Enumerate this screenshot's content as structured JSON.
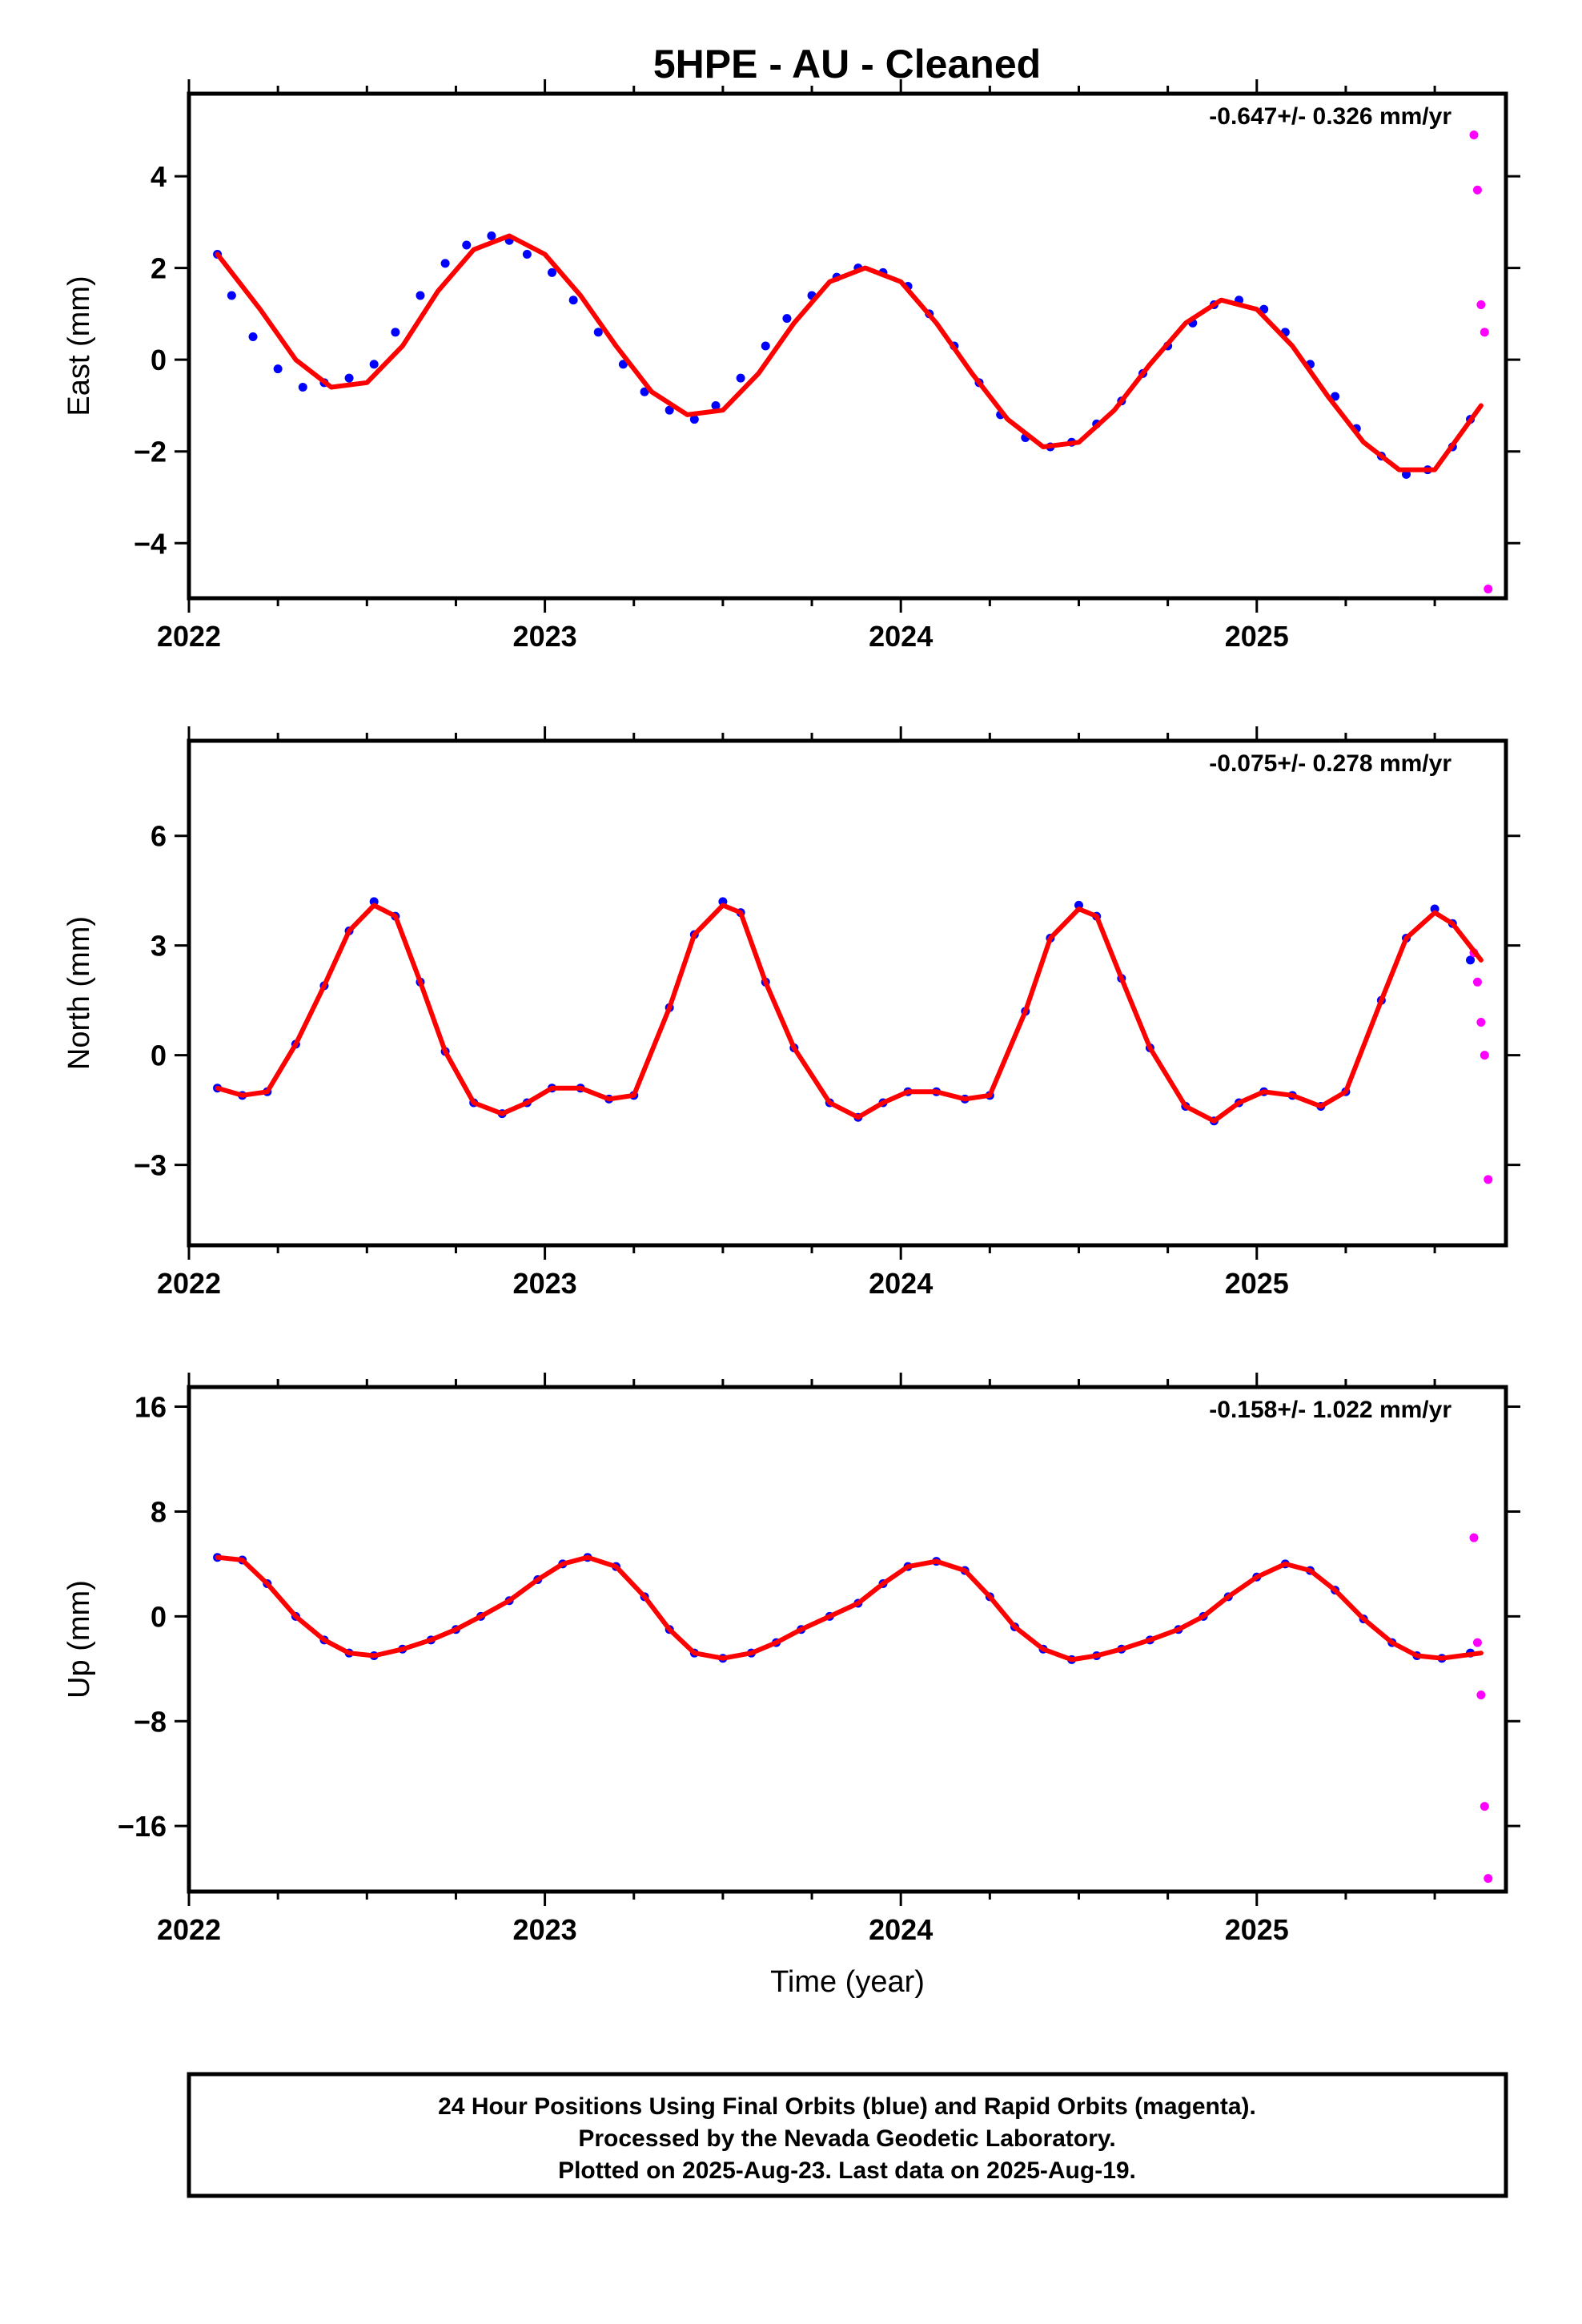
{
  "title": "5HPE  - AU - Cleaned",
  "colors": {
    "final": "#0000ff",
    "rapid": "#ff00ff",
    "fit": "#ff0000",
    "frame": "#000000"
  },
  "chart_data": [
    {
      "type": "scatter",
      "ylabel": "East (mm)",
      "rate_label": "-0.647+/- 0.326 mm/yr",
      "xlim": [
        2022.0,
        2025.7
      ],
      "ylim": [
        -5.2,
        5.8
      ],
      "x_ticks": [
        2022,
        2023,
        2024,
        2025
      ],
      "x_tick_labels": [
        "2022",
        "2023",
        "2024",
        "2025"
      ],
      "y_ticks": [
        -4,
        -2,
        0,
        2,
        4
      ],
      "y_tick_labels": [
        "−4",
        "−2",
        "0",
        "2",
        "4"
      ],
      "series": [
        {
          "kind": "points",
          "color": "#0000ff",
          "x": [
            2022.08,
            2022.12,
            2022.18,
            2022.25,
            2022.32,
            2022.38,
            2022.45,
            2022.52,
            2022.58,
            2022.65,
            2022.72,
            2022.78,
            2022.85,
            2022.9,
            2022.95,
            2023.02,
            2023.08,
            2023.15,
            2023.22,
            2023.28,
            2023.35,
            2023.42,
            2023.48,
            2023.55,
            2023.62,
            2023.68,
            2023.75,
            2023.82,
            2023.88,
            2023.95,
            2024.02,
            2024.08,
            2024.15,
            2024.22,
            2024.28,
            2024.35,
            2024.42,
            2024.48,
            2024.55,
            2024.62,
            2024.68,
            2024.75,
            2024.82,
            2024.88,
            2024.95,
            2025.02,
            2025.08,
            2025.15,
            2025.22,
            2025.28,
            2025.35,
            2025.42,
            2025.48,
            2025.55,
            2025.6
          ],
          "y": [
            2.3,
            1.4,
            0.5,
            -0.2,
            -0.6,
            -0.5,
            -0.4,
            -0.1,
            0.6,
            1.4,
            2.1,
            2.5,
            2.7,
            2.6,
            2.3,
            1.9,
            1.3,
            0.6,
            -0.1,
            -0.7,
            -1.1,
            -1.3,
            -1.0,
            -0.4,
            0.3,
            0.9,
            1.4,
            1.8,
            2.0,
            1.9,
            1.6,
            1.0,
            0.3,
            -0.5,
            -1.2,
            -1.7,
            -1.9,
            -1.8,
            -1.4,
            -0.9,
            -0.3,
            0.3,
            0.8,
            1.2,
            1.3,
            1.1,
            0.6,
            -0.1,
            -0.8,
            -1.5,
            -2.1,
            -2.5,
            -2.4,
            -1.9,
            -1.3
          ]
        },
        {
          "kind": "points",
          "color": "#ff00ff",
          "x": [
            2025.61,
            2025.62,
            2025.63,
            2025.64,
            2025.65
          ],
          "y": [
            4.9,
            3.7,
            1.2,
            0.6,
            -5.0
          ]
        },
        {
          "kind": "line",
          "color": "#ff0000",
          "x": [
            2022.08,
            2022.2,
            2022.3,
            2022.4,
            2022.5,
            2022.6,
            2022.7,
            2022.8,
            2022.9,
            2023.0,
            2023.1,
            2023.2,
            2023.3,
            2023.4,
            2023.5,
            2023.6,
            2023.7,
            2023.8,
            2023.9,
            2024.0,
            2024.1,
            2024.2,
            2024.3,
            2024.4,
            2024.5,
            2024.6,
            2024.7,
            2024.8,
            2024.9,
            2025.0,
            2025.1,
            2025.2,
            2025.3,
            2025.4,
            2025.5,
            2025.63
          ],
          "y": [
            2.3,
            1.1,
            0.0,
            -0.6,
            -0.5,
            0.3,
            1.5,
            2.4,
            2.7,
            2.3,
            1.4,
            0.3,
            -0.7,
            -1.2,
            -1.1,
            -0.3,
            0.8,
            1.7,
            2.0,
            1.7,
            0.8,
            -0.3,
            -1.3,
            -1.9,
            -1.8,
            -1.1,
            -0.1,
            0.8,
            1.3,
            1.1,
            0.3,
            -0.8,
            -1.8,
            -2.4,
            -2.4,
            -1.0
          ]
        }
      ]
    },
    {
      "type": "scatter",
      "ylabel": "North (mm)",
      "rate_label": "-0.075+/- 0.278 mm/yr",
      "xlim": [
        2022.0,
        2025.7
      ],
      "ylim": [
        -5.2,
        8.6
      ],
      "x_ticks": [
        2022,
        2023,
        2024,
        2025
      ],
      "x_tick_labels": [
        "2022",
        "2023",
        "2024",
        "2025"
      ],
      "y_ticks": [
        -3,
        0,
        3,
        6
      ],
      "y_tick_labels": [
        "−3",
        "0",
        "3",
        "6"
      ],
      "series": [
        {
          "kind": "points",
          "color": "#0000ff",
          "x": [
            2022.08,
            2022.15,
            2022.22,
            2022.3,
            2022.38,
            2022.45,
            2022.52,
            2022.58,
            2022.65,
            2022.72,
            2022.8,
            2022.88,
            2022.95,
            2023.02,
            2023.1,
            2023.18,
            2023.25,
            2023.35,
            2023.42,
            2023.5,
            2023.55,
            2023.62,
            2023.7,
            2023.8,
            2023.88,
            2023.95,
            2024.02,
            2024.1,
            2024.18,
            2024.25,
            2024.35,
            2024.42,
            2024.5,
            2024.55,
            2024.62,
            2024.7,
            2024.8,
            2024.88,
            2024.95,
            2025.02,
            2025.1,
            2025.18,
            2025.25,
            2025.35,
            2025.42,
            2025.5,
            2025.55,
            2025.6
          ],
          "y": [
            -0.9,
            -1.1,
            -1.0,
            0.3,
            1.9,
            3.4,
            4.2,
            3.8,
            2.0,
            0.1,
            -1.3,
            -1.6,
            -1.3,
            -0.9,
            -0.9,
            -1.2,
            -1.1,
            1.3,
            3.3,
            4.2,
            3.9,
            2.0,
            0.2,
            -1.3,
            -1.7,
            -1.3,
            -1.0,
            -1.0,
            -1.2,
            -1.1,
            1.2,
            3.2,
            4.1,
            3.8,
            2.1,
            0.2,
            -1.4,
            -1.8,
            -1.3,
            -1.0,
            -1.1,
            -1.4,
            -1.0,
            1.5,
            3.2,
            4.0,
            3.6,
            2.6
          ]
        },
        {
          "kind": "points",
          "color": "#ff00ff",
          "x": [
            2025.61,
            2025.62,
            2025.63,
            2025.64,
            2025.65
          ],
          "y": [
            2.8,
            2.0,
            0.9,
            0.0,
            -3.4
          ]
        },
        {
          "kind": "line",
          "color": "#ff0000",
          "x": [
            2022.08,
            2022.15,
            2022.22,
            2022.3,
            2022.38,
            2022.45,
            2022.52,
            2022.58,
            2022.65,
            2022.72,
            2022.8,
            2022.88,
            2022.95,
            2023.02,
            2023.1,
            2023.18,
            2023.25,
            2023.35,
            2023.42,
            2023.5,
            2023.55,
            2023.62,
            2023.7,
            2023.8,
            2023.88,
            2023.95,
            2024.02,
            2024.1,
            2024.18,
            2024.25,
            2024.35,
            2024.42,
            2024.5,
            2024.55,
            2024.62,
            2024.7,
            2024.8,
            2024.88,
            2024.95,
            2025.02,
            2025.1,
            2025.18,
            2025.25,
            2025.35,
            2025.42,
            2025.5,
            2025.55,
            2025.63
          ],
          "y": [
            -0.9,
            -1.1,
            -1.0,
            0.3,
            1.9,
            3.4,
            4.1,
            3.8,
            2.0,
            0.1,
            -1.3,
            -1.6,
            -1.3,
            -0.9,
            -0.9,
            -1.2,
            -1.1,
            1.3,
            3.3,
            4.1,
            3.9,
            2.0,
            0.2,
            -1.3,
            -1.7,
            -1.3,
            -1.0,
            -1.0,
            -1.2,
            -1.1,
            1.2,
            3.2,
            4.0,
            3.8,
            2.1,
            0.2,
            -1.4,
            -1.8,
            -1.3,
            -1.0,
            -1.1,
            -1.4,
            -1.0,
            1.5,
            3.2,
            3.9,
            3.6,
            2.6
          ]
        }
      ]
    },
    {
      "type": "scatter",
      "ylabel": "Up (mm)",
      "rate_label": "-0.158+/- 1.022 mm/yr",
      "xlim": [
        2022.0,
        2025.7
      ],
      "ylim": [
        -21.0,
        17.5
      ],
      "x_ticks": [
        2022,
        2023,
        2024,
        2025
      ],
      "x_tick_labels": [
        "2022",
        "2023",
        "2024",
        "2025"
      ],
      "y_ticks": [
        -16,
        -8,
        0,
        8,
        16
      ],
      "y_tick_labels": [
        "−16",
        "−8",
        "0",
        "8",
        "16"
      ],
      "xlabel": "Time (year)",
      "series": [
        {
          "kind": "points",
          "color": "#0000ff",
          "x": [
            2022.08,
            2022.15,
            2022.22,
            2022.3,
            2022.38,
            2022.45,
            2022.52,
            2022.6,
            2022.68,
            2022.75,
            2022.82,
            2022.9,
            2022.98,
            2023.05,
            2023.12,
            2023.2,
            2023.28,
            2023.35,
            2023.42,
            2023.5,
            2023.58,
            2023.65,
            2023.72,
            2023.8,
            2023.88,
            2023.95,
            2024.02,
            2024.1,
            2024.18,
            2024.25,
            2024.32,
            2024.4,
            2024.48,
            2024.55,
            2024.62,
            2024.7,
            2024.78,
            2024.85,
            2024.92,
            2025.0,
            2025.08,
            2025.15,
            2025.22,
            2025.3,
            2025.38,
            2025.45,
            2025.52,
            2025.6
          ],
          "y": [
            4.5,
            4.3,
            2.5,
            0.0,
            -1.8,
            -2.8,
            -3.0,
            -2.5,
            -1.8,
            -1.0,
            0.0,
            1.2,
            2.8,
            4.0,
            4.5,
            3.8,
            1.5,
            -1.0,
            -2.8,
            -3.2,
            -2.8,
            -2.0,
            -1.0,
            0.0,
            1.0,
            2.5,
            3.8,
            4.2,
            3.5,
            1.5,
            -0.8,
            -2.5,
            -3.3,
            -3.0,
            -2.5,
            -1.8,
            -1.0,
            0.0,
            1.5,
            3.0,
            4.0,
            3.5,
            2.0,
            -0.2,
            -2.0,
            -3.0,
            -3.2,
            -2.8
          ]
        },
        {
          "kind": "points",
          "color": "#ff00ff",
          "x": [
            2025.61,
            2025.62,
            2025.63,
            2025.64,
            2025.65
          ],
          "y": [
            6.0,
            -2.0,
            -6.0,
            -14.5,
            -20.0
          ]
        },
        {
          "kind": "line",
          "color": "#ff0000",
          "x": [
            2022.08,
            2022.15,
            2022.22,
            2022.3,
            2022.38,
            2022.45,
            2022.52,
            2022.6,
            2022.68,
            2022.75,
            2022.82,
            2022.9,
            2022.98,
            2023.05,
            2023.12,
            2023.2,
            2023.28,
            2023.35,
            2023.42,
            2023.5,
            2023.58,
            2023.65,
            2023.72,
            2023.8,
            2023.88,
            2023.95,
            2024.02,
            2024.1,
            2024.18,
            2024.25,
            2024.32,
            2024.4,
            2024.48,
            2024.55,
            2024.62,
            2024.7,
            2024.78,
            2024.85,
            2024.92,
            2025.0,
            2025.08,
            2025.15,
            2025.22,
            2025.3,
            2025.38,
            2025.45,
            2025.52,
            2025.63
          ],
          "y": [
            4.5,
            4.3,
            2.5,
            0.0,
            -1.8,
            -2.8,
            -3.0,
            -2.5,
            -1.8,
            -1.0,
            0.0,
            1.2,
            2.8,
            4.0,
            4.5,
            3.8,
            1.5,
            -1.0,
            -2.8,
            -3.2,
            -2.8,
            -2.0,
            -1.0,
            0.0,
            1.0,
            2.5,
            3.8,
            4.2,
            3.5,
            1.5,
            -0.8,
            -2.5,
            -3.3,
            -3.0,
            -2.5,
            -1.8,
            -1.0,
            0.0,
            1.5,
            3.0,
            4.0,
            3.5,
            2.0,
            -0.2,
            -2.0,
            -3.0,
            -3.2,
            -2.8
          ]
        }
      ]
    }
  ],
  "footer": {
    "line1": "24 Hour Positions Using Final Orbits (blue) and Rapid Orbits (magenta).",
    "line2": "Processed by the Nevada Geodetic Laboratory.",
    "line3": "Plotted on 2025-Aug-23. Last data on 2025-Aug-19."
  }
}
